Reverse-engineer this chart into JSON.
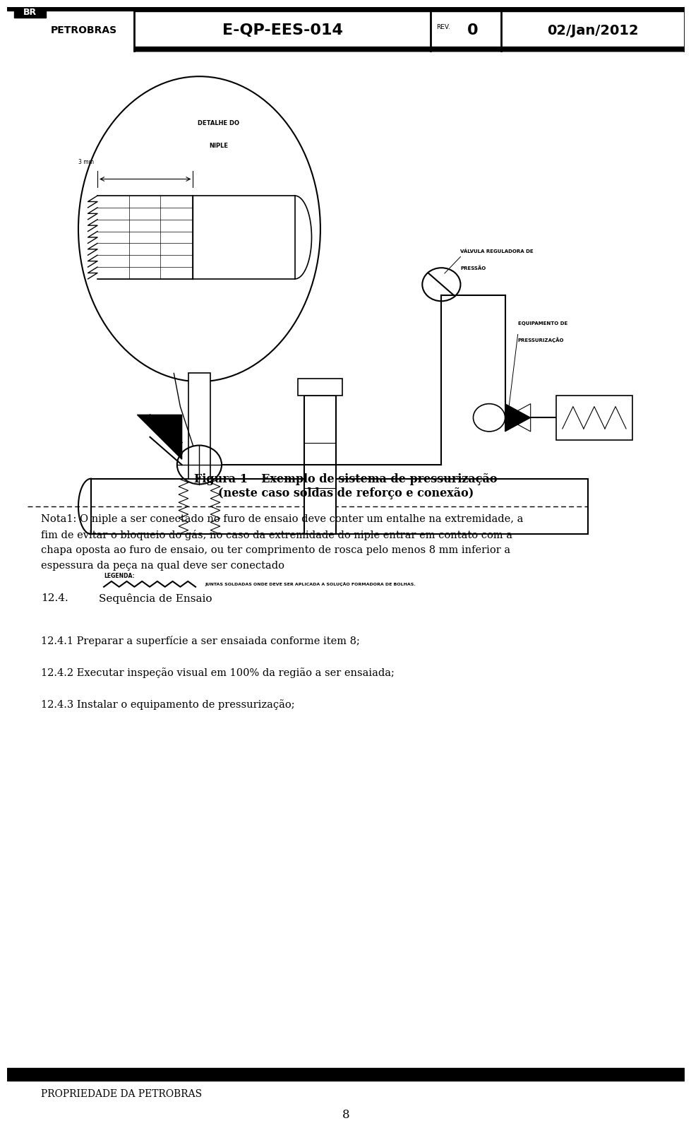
{
  "bg_color": "#ffffff",
  "header": {
    "logo_text": "BR",
    "company": "PETROBRAS",
    "doc_code": "E-QP-EES-014",
    "rev_label": "REV.",
    "rev_num": "0",
    "date": "02/Jan/2012"
  },
  "footer": {
    "bar_color": "#000000",
    "left_text": "PROPRIEDADE DA PETROBRAS",
    "page_num": "8"
  },
  "fig_caption_1": "Figura 1 – Exemplo de sistema de pressurização",
  "fig_caption_2": "(neste caso soldas de reforço e conexão)",
  "legenda_title": "LEGENDA:",
  "legenda_text": "JUNTAS SOLDADAS ONDE DEVE SER APLICADA A SOLUÇÃO FORMADORA DE BOLHAS.",
  "nota1": "Nota1: O niple a ser conectado no furo de ensaio deve conter um entalhe na extremidade, a fim de evitar o bloqueio do gás, no caso da extremidade do niple entrar em contato com a chapa oposta ao furo de ensaio, ou ter comprimento de rosca pelo menos 8 mm inferior a espessura da peça na qual deve ser conectado",
  "section_title": "12.4.\tSequência de Ensaio",
  "items": [
    "12.4.1 Preparar a superfície a ser ensaiada conforme item 8;",
    "12.4.2 Executar inspeção visual em 100% da região a ser ensaiada;",
    "12.4.3 Instalar o equipamento de pressurização;"
  ],
  "label_valvula_1": "VÁLVULA REGULADORA DE",
  "label_valvula_2": "PRESSÃO",
  "label_equip_1": "EQUIPAMENTO DE",
  "label_equip_2": "PRESSURIZAÇÃO",
  "label_detalhe_1": "DETALHE DO",
  "label_detalhe_2": "NIPLE",
  "label_3mm": "3 mm"
}
